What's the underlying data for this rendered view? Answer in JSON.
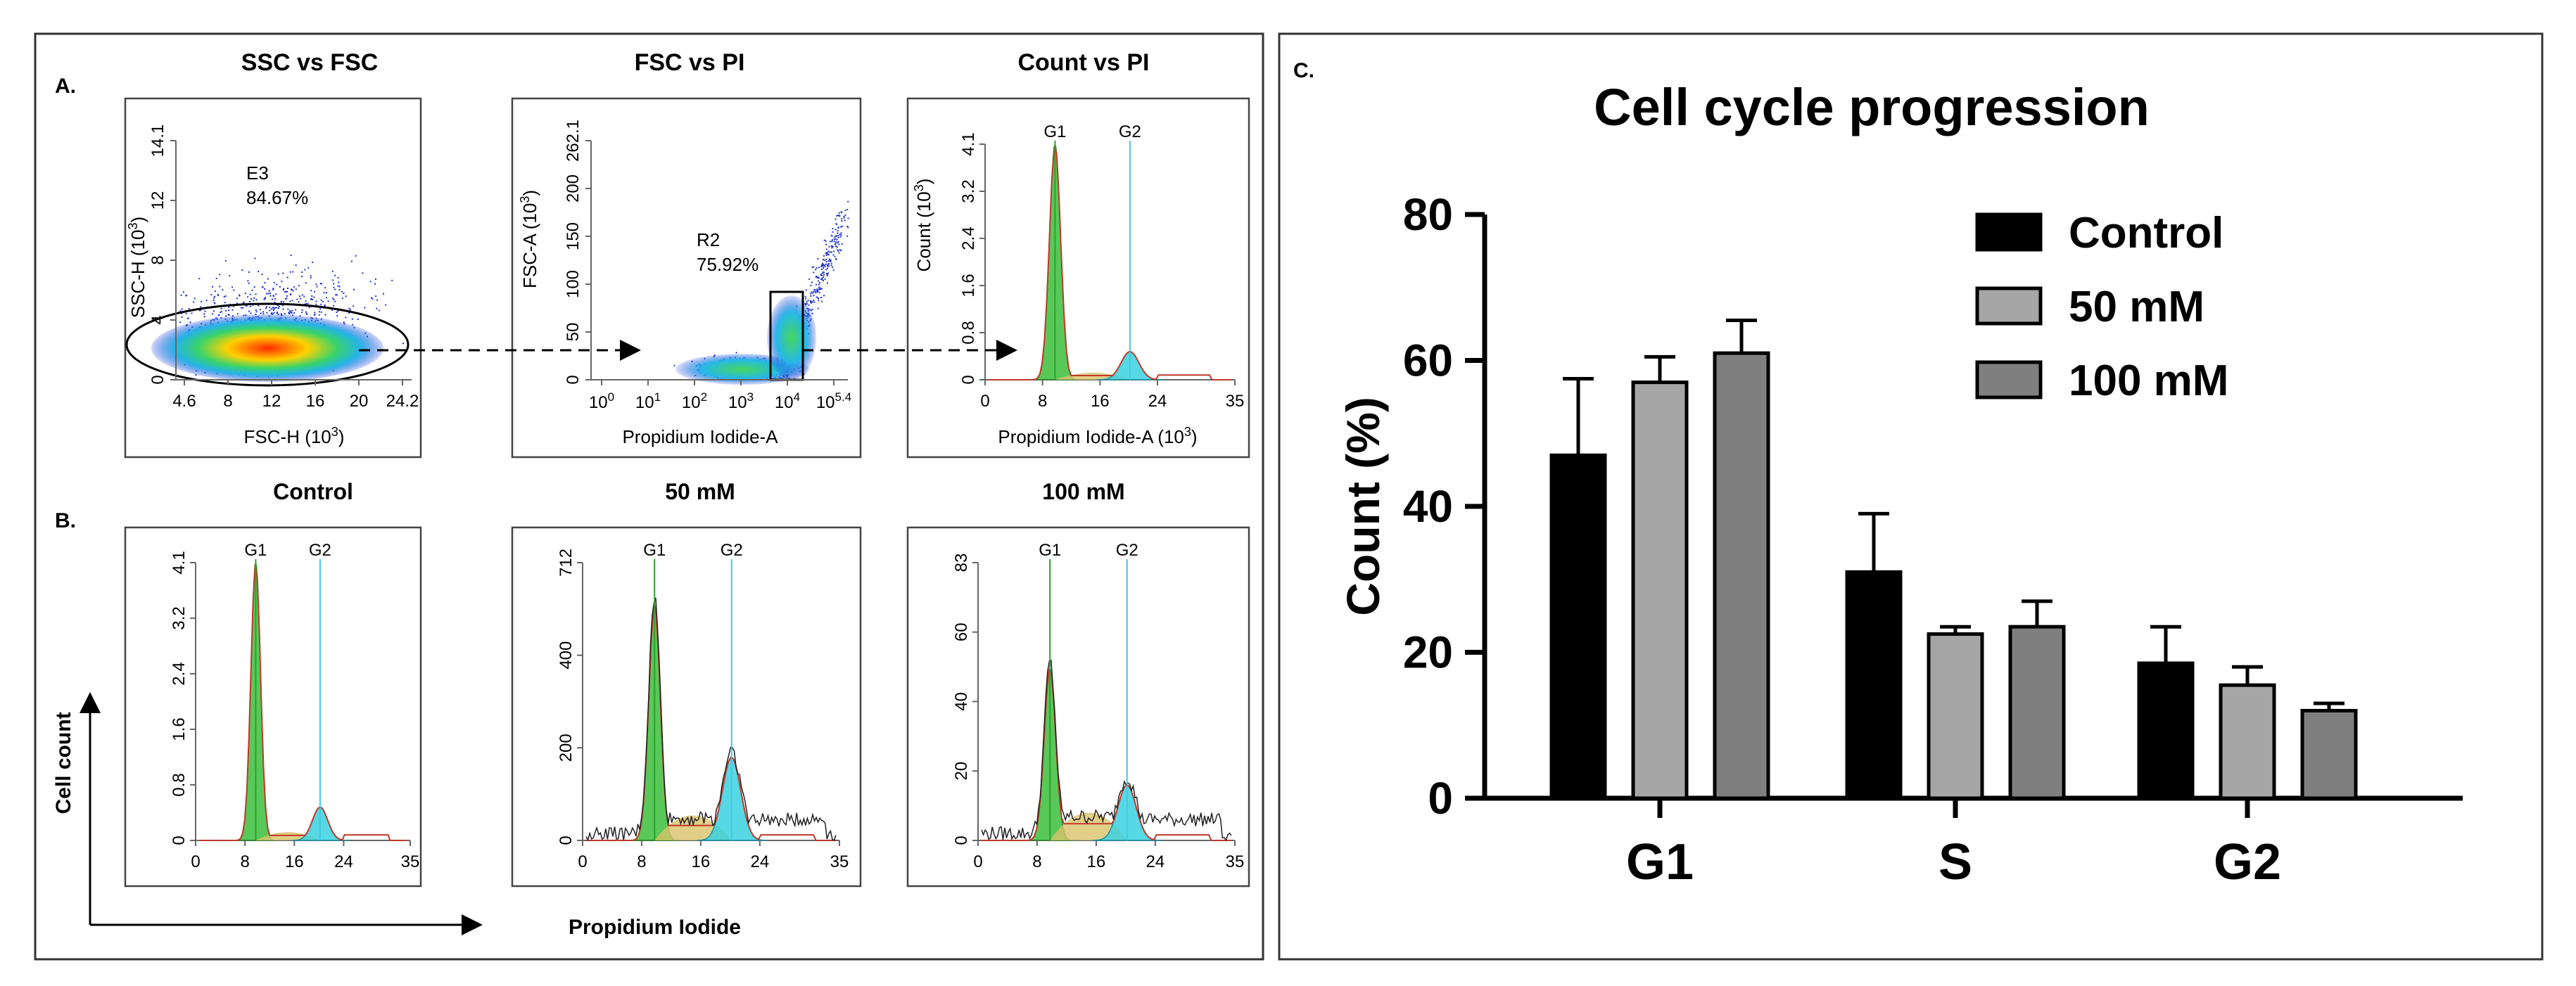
{
  "panel_a": {
    "letter": "A.",
    "plot1": {
      "title": "SSC vs FSC",
      "ylabel": "SSC-H (10",
      "ylabel_exp": "3",
      "ylabel_end": ")",
      "xlabel": "FSC-H (10",
      "xlabel_exp": "3",
      "xlabel_end": ")",
      "gate_name": "E3",
      "gate_pct": "84.67%",
      "xticks": [
        "4.6",
        "8",
        "12",
        "16",
        "20",
        "24.2"
      ],
      "yticks": [
        "0",
        "4",
        "8",
        "12",
        "14.1"
      ]
    },
    "plot2": {
      "title": "FSC vs PI",
      "ylabel": "FSC-A (10",
      "ylabel_exp": "3",
      "ylabel_end": ")",
      "xlabel": "Propidium Iodide-A",
      "gate_name": "R2",
      "gate_pct": "75.92%",
      "xticks": [
        {
          "b": "10",
          "e": "0"
        },
        {
          "b": "10",
          "e": "1"
        },
        {
          "b": "10",
          "e": "2"
        },
        {
          "b": "10",
          "e": "3"
        },
        {
          "b": "10",
          "e": "4"
        },
        {
          "b": "10",
          "e": "5.4"
        }
      ],
      "yticks": [
        "0",
        "50",
        "100",
        "150",
        "200",
        "262.1"
      ]
    },
    "plot3": {
      "title": "Count vs PI",
      "ylabel": "Count (10",
      "ylabel_exp": "3",
      "ylabel_end": ")",
      "xlabel": "Propidium Iodide-A (10",
      "xlabel_exp": "3",
      "xlabel_end": ")",
      "marker_g1": "G1",
      "marker_g2": "G2",
      "xticks": [
        "0",
        "8",
        "16",
        "24",
        "35"
      ],
      "yticks": [
        "0",
        "0.8",
        "1.6",
        "2.4",
        "3.2",
        "4.1"
      ]
    }
  },
  "panel_b": {
    "letter": "B.",
    "yaxis_label": "Cell count",
    "xaxis_label": "Propidium Iodide",
    "plots": [
      {
        "title": "Control",
        "g1": "G1",
        "g2": "G2",
        "xticks": [
          "0",
          "8",
          "16",
          "24",
          "35"
        ],
        "yticks": [
          "0",
          "0.8",
          "1.6",
          "2.4",
          "3.2",
          "4.1"
        ]
      },
      {
        "title": "50 mM",
        "g1": "G1",
        "g2": "G2",
        "xticks": [
          "0",
          "8",
          "16",
          "24",
          "35"
        ],
        "yticks": [
          "0",
          "200",
          "400",
          "712"
        ]
      },
      {
        "title": "100 mM",
        "g1": "G1",
        "g2": "G2",
        "xticks": [
          "0",
          "8",
          "16",
          "24",
          "35"
        ],
        "yticks": [
          "0",
          "20",
          "40",
          "60",
          "83"
        ]
      }
    ]
  },
  "panel_c": {
    "letter": "C."
  },
  "colors": {
    "control": "#000000",
    "mm50": "#a6a6a6",
    "mm100": "#7f7f7f",
    "g1_fill": "#3bbf3b",
    "s_fill": "#d9c36a",
    "g2_fill": "#39d1e0",
    "dots": "#2233cc"
  },
  "chart_data": {
    "type": "bar",
    "title": "Cell cycle progression",
    "xlabel": "",
    "ylabel": "Count (%)",
    "ylim": [
      0,
      80
    ],
    "yticks": [
      0,
      20,
      40,
      60,
      80
    ],
    "categories": [
      "G1",
      "S",
      "G2"
    ],
    "legend_position": "top-right",
    "series": [
      {
        "name": "Control",
        "values": [
          47,
          31,
          18.5
        ],
        "errors": [
          10.5,
          8,
          5
        ]
      },
      {
        "name": "50 mM",
        "values": [
          57,
          22.5,
          15.5
        ],
        "errors": [
          3.5,
          1,
          2.5
        ]
      },
      {
        "name": "100 mM",
        "values": [
          61,
          23.5,
          12
        ],
        "errors": [
          4.5,
          3.5,
          1
        ]
      }
    ]
  }
}
